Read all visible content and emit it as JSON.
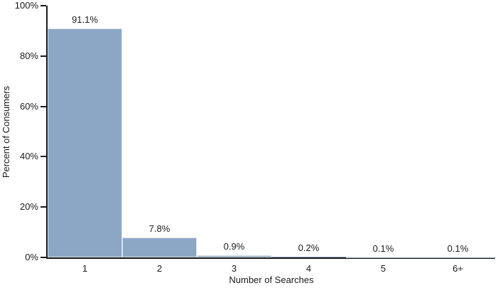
{
  "chart_data": {
    "type": "bar",
    "title": "",
    "categories": [
      "1",
      "2",
      "3",
      "4",
      "5",
      "6+"
    ],
    "values": [
      91.1,
      7.8,
      0.9,
      0.2,
      0.1,
      0.1
    ],
    "value_labels": [
      "91.1%",
      "7.8%",
      "0.9%",
      "0.2%",
      "0.1%",
      "0.1%"
    ],
    "xlabel": "Number of Searches",
    "ylabel": "Percent of Consumers",
    "ylim": [
      0,
      100
    ],
    "y_tick_values": [
      0,
      20,
      40,
      60,
      80,
      100
    ],
    "y_tick_labels": [
      "0%",
      "20%",
      "40%",
      "60%",
      "80%",
      "100%"
    ],
    "grid": false,
    "legend": "none",
    "bar_color": "#8ca7c6",
    "bar_edge_color": "#dbe1e9",
    "axis_color": "#1a1a1a",
    "text_color": "#1a1a1a"
  }
}
